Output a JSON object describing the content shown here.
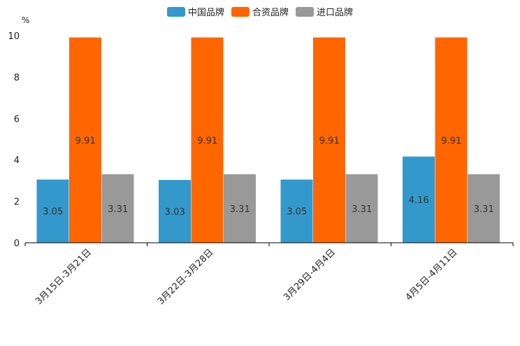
{
  "chart_data": {
    "type": "bar",
    "categories": [
      "3月15日-3月21日",
      "3月22日-3月28日",
      "3月29日-4月4日",
      "4月5日-4月11日"
    ],
    "series": [
      {
        "name": "中国品牌",
        "color": "#3399cc",
        "values": [
          3.05,
          3.03,
          3.05,
          4.16
        ]
      },
      {
        "name": "合资品牌",
        "color": "#ff6600",
        "values": [
          9.91,
          9.91,
          9.91,
          9.91
        ]
      },
      {
        "name": "进口品牌",
        "color": "#999999",
        "values": [
          3.31,
          3.31,
          3.31,
          3.31
        ]
      }
    ],
    "ylabel": "%",
    "ylim": [
      0,
      10
    ],
    "yticks": [
      0,
      2,
      4,
      6,
      8,
      10
    ],
    "legend_position": "top-center",
    "grid": false
  }
}
